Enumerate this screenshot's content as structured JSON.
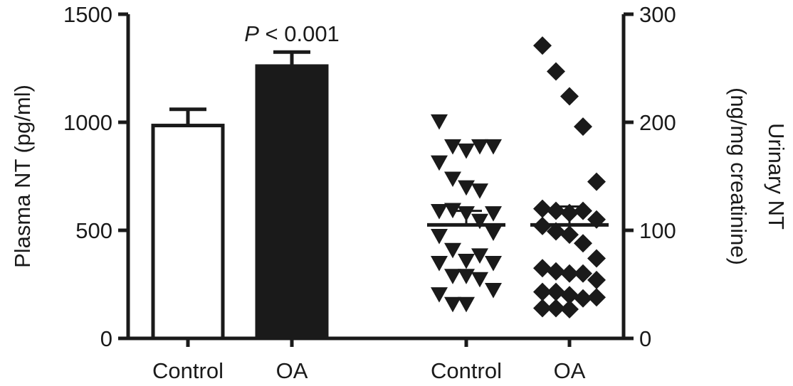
{
  "chart_data": {
    "type": "bar",
    "title": "",
    "left_axis": {
      "label": "Plasma NT  (pg/ml)",
      "ylim": [
        0,
        1500
      ],
      "ticks": [
        0,
        500,
        1000,
        1500
      ],
      "tick_labels": [
        "0",
        "500",
        "1000",
        "1500"
      ]
    },
    "right_axis": {
      "label_line1": "Urinary NT",
      "label_line2": "(ng/mg creatinine)",
      "ylim": [
        0,
        300
      ],
      "ticks": [
        0,
        100,
        200,
        300
      ],
      "tick_labels": [
        "0",
        "100",
        "200",
        "300"
      ]
    },
    "categories": [
      "Control",
      "OA",
      "Control",
      "OA"
    ],
    "bars": [
      {
        "category": "Control",
        "value": 985,
        "error": 75,
        "fill": "#ffffff"
      },
      {
        "category": "OA",
        "value": 1260,
        "error": 65,
        "fill": "#1a1a1a"
      }
    ],
    "annotation": {
      "italic": "P",
      "text": " < 0.001"
    },
    "scatter": [
      {
        "category": "Control",
        "marker": "triangle-down",
        "mean": 105,
        "sem_upper": 118,
        "points": [
          201,
          178,
          174,
          178,
          178,
          163,
          148,
          140,
          137,
          116,
          118,
          119,
          116,
          109,
          98,
          95,
          82,
          72,
          77,
          70,
          70,
          58,
          58,
          55,
          45,
          41,
          32,
          32
        ]
      },
      {
        "category": "OA",
        "marker": "diamond",
        "mean": 105,
        "sem_upper": 122,
        "points": [
          271,
          247,
          224,
          196,
          145,
          120,
          118,
          116,
          118,
          110,
          104,
          99,
          96,
          88,
          74,
          65,
          62,
          60,
          60,
          54,
          43,
          43,
          40,
          37,
          38,
          28,
          28,
          27
        ]
      }
    ],
    "colors": {
      "ink": "#1a1a1a",
      "background": "#ffffff"
    }
  }
}
